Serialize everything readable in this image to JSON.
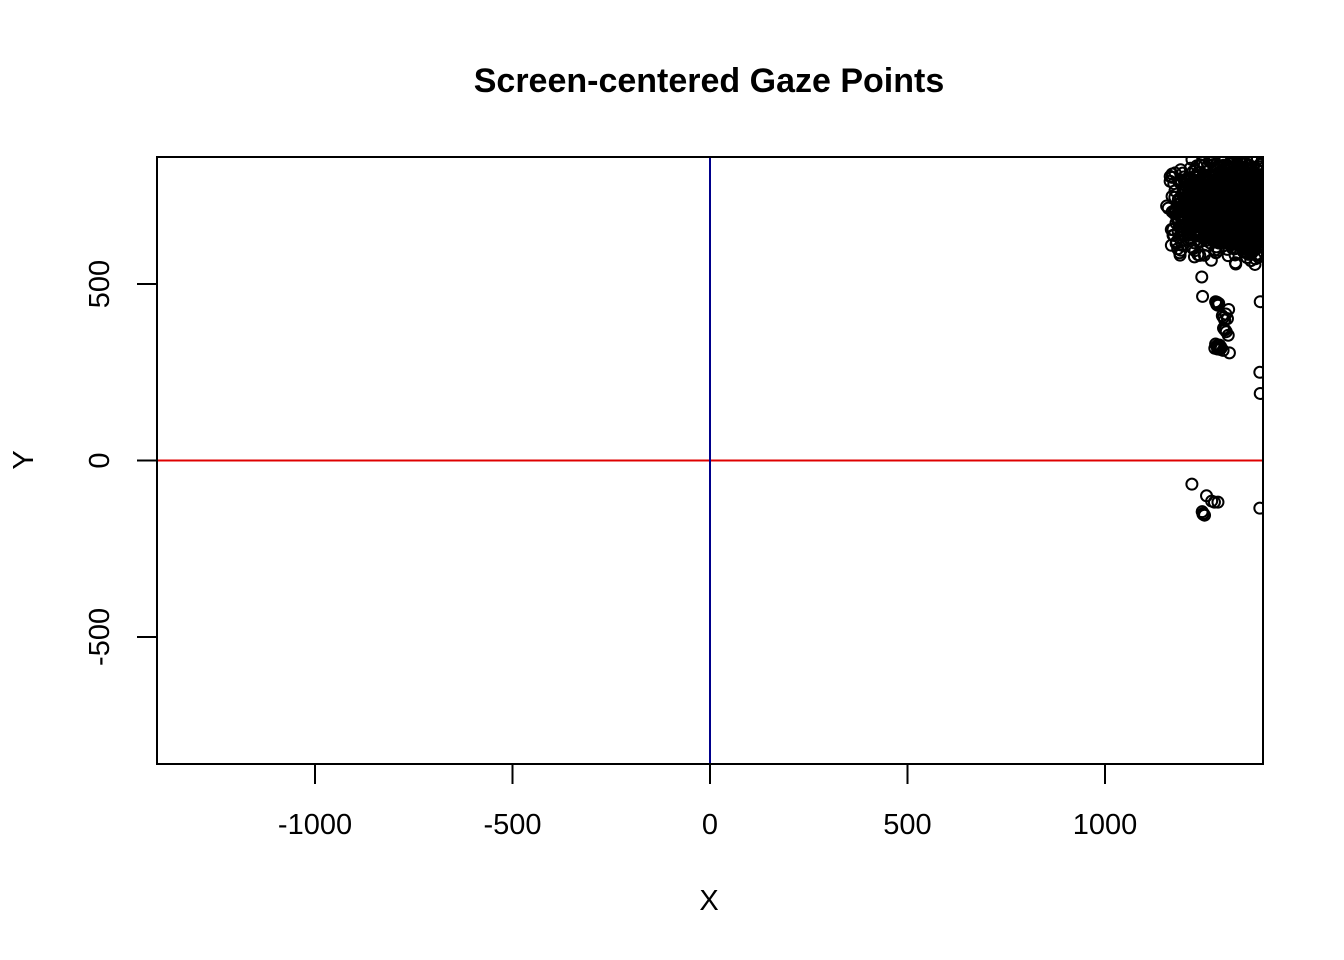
{
  "chart_data": {
    "type": "scatter",
    "title": "Screen-centered Gaze Points",
    "xlabel": "X",
    "ylabel": "Y",
    "xlim": [
      -1400,
      1400
    ],
    "ylim": [
      -860,
      860
    ],
    "x_ticks": [
      -1000,
      -500,
      0,
      500,
      1000
    ],
    "x_tick_labels": [
      "-1000",
      "-500",
      "0",
      "500",
      "1000"
    ],
    "y_ticks": [
      -500,
      0,
      500
    ],
    "y_tick_labels": [
      "-500",
      "0",
      "500"
    ],
    "grid": false,
    "marker": "open-circle",
    "point_color": "#000000",
    "reference_lines": [
      {
        "orientation": "horizontal",
        "value": 0,
        "color": "#DF0000"
      },
      {
        "orientation": "vertical",
        "value": 0,
        "color": "#00008B"
      }
    ],
    "cluster": {
      "x_range": [
        1160,
        1400
      ],
      "y_range": [
        580,
        850
      ],
      "count": 1400
    },
    "points": [
      [
        1156,
        721
      ],
      [
        1160,
        715
      ],
      [
        1170,
        812
      ],
      [
        1165,
        805
      ],
      [
        1170,
        705
      ],
      [
        1175,
        700
      ],
      [
        1180,
        615
      ],
      [
        1184,
        600
      ],
      [
        1190,
        582
      ],
      [
        1195,
        610
      ],
      [
        1245,
        520
      ],
      [
        1247,
        465
      ],
      [
        1280,
        450
      ],
      [
        1284,
        448
      ],
      [
        1288,
        445
      ],
      [
        1283,
        442
      ],
      [
        1286,
        440
      ],
      [
        1297,
        410
      ],
      [
        1300,
        405
      ],
      [
        1303,
        398
      ],
      [
        1306,
        415
      ],
      [
        1310,
        402
      ],
      [
        1313,
        428
      ],
      [
        1300,
        375
      ],
      [
        1304,
        370
      ],
      [
        1307,
        365
      ],
      [
        1302,
        372
      ],
      [
        1312,
        355
      ],
      [
        1280,
        330
      ],
      [
        1283,
        325
      ],
      [
        1286,
        320
      ],
      [
        1290,
        327
      ],
      [
        1278,
        318
      ],
      [
        1293,
        322
      ],
      [
        1285,
        316
      ],
      [
        1290,
        315
      ],
      [
        1294,
        318
      ],
      [
        1299,
        312
      ],
      [
        1315,
        305
      ],
      [
        1393,
        450
      ],
      [
        1392,
        250
      ],
      [
        1393,
        190
      ],
      [
        1220,
        -67
      ],
      [
        1257,
        -100
      ],
      [
        1270,
        -115
      ],
      [
        1277,
        -118
      ],
      [
        1286,
        -118
      ],
      [
        1246,
        -145
      ],
      [
        1249,
        -150
      ],
      [
        1252,
        -155
      ],
      [
        1248,
        -152
      ],
      [
        1392,
        -135
      ]
    ]
  }
}
